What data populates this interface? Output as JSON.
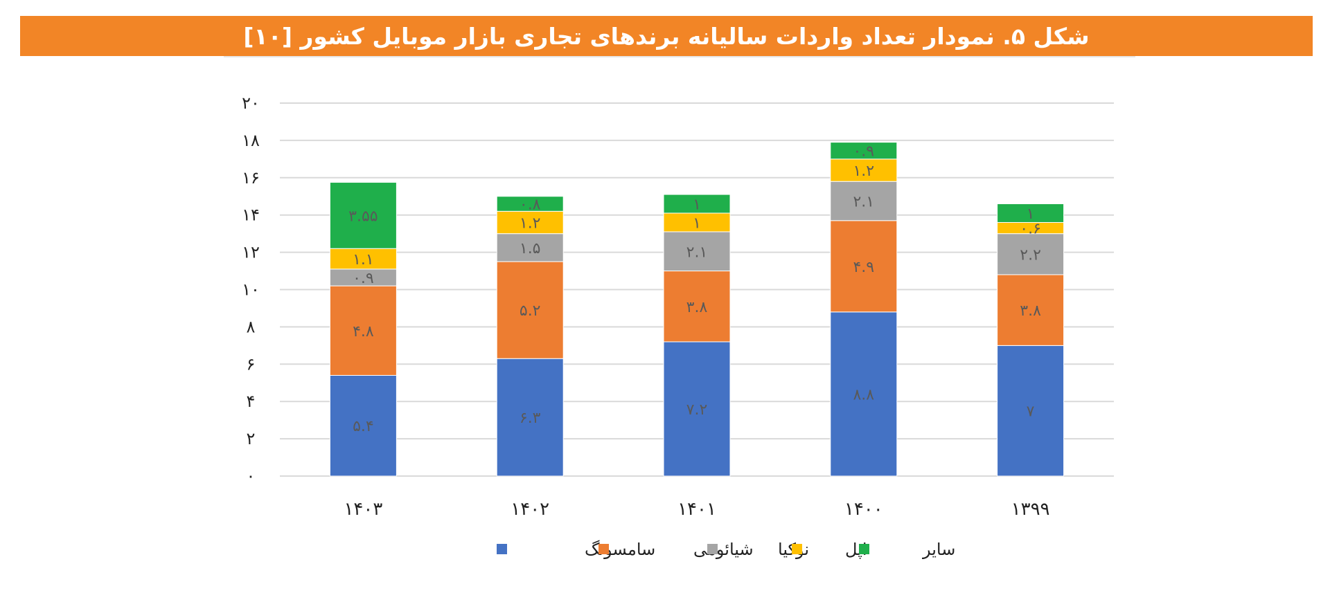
{
  "chart_data": {
    "type": "bar",
    "stacked": true,
    "title": "شکل ۵. نمودار تعداد واردات سالیانه برندهای تجاری بازار موبایل کشور [۱۰]",
    "xlabel": "",
    "ylabel": "",
    "ylim": [
      0,
      20
    ],
    "yticks": [
      0,
      2,
      4,
      6,
      8,
      10,
      12,
      14,
      16,
      18,
      20
    ],
    "ytick_labels": [
      "۰",
      "۲",
      "۴",
      "۶",
      "۸",
      "۱۰",
      "۱۲",
      "۱۴",
      "۱۶",
      "۱۸",
      "۲۰"
    ],
    "grid": true,
    "legend_position": "bottom",
    "categories": [
      "۱۴۰۳",
      "۱۴۰۲",
      "۱۴۰۱",
      "۱۴۰۰",
      "۱۳۹۹"
    ],
    "series": [
      {
        "name": "سامسونگ",
        "color": "#4472C4",
        "values": [
          5.4,
          6.3,
          7.2,
          8.8,
          7
        ],
        "labels": [
          "۵.۴",
          "۶.۳",
          "۷.۲",
          "۸.۸",
          "۷"
        ]
      },
      {
        "name": "شیائومی",
        "color": "#ED7D31",
        "values": [
          4.8,
          5.2,
          3.8,
          4.9,
          3.8
        ],
        "labels": [
          "۴.۸",
          "۵.۲",
          "۳.۸",
          "۴.۹",
          "۳.۸"
        ]
      },
      {
        "name": "نوکیا",
        "color": "#A5A5A5",
        "values": [
          0.9,
          1.5,
          2.1,
          2.1,
          2.2
        ],
        "labels": [
          "۰.۹",
          "۱.۵",
          "۲.۱",
          "۲.۱",
          "۲.۲"
        ]
      },
      {
        "name": "اپل",
        "color": "#FFC000",
        "values": [
          1.1,
          1.2,
          1,
          1.2,
          0.6
        ],
        "labels": [
          "۱.۱",
          "۱.۲",
          "۱",
          "۱.۲",
          "۰.۶"
        ]
      },
      {
        "name": "سایر",
        "color": "#1FAF4B",
        "values": [
          3.55,
          0.8,
          1,
          0.9,
          1
        ],
        "labels": [
          "۳.۵۵",
          "۰.۸",
          "۱",
          "۰.۹",
          "۱"
        ]
      }
    ]
  }
}
